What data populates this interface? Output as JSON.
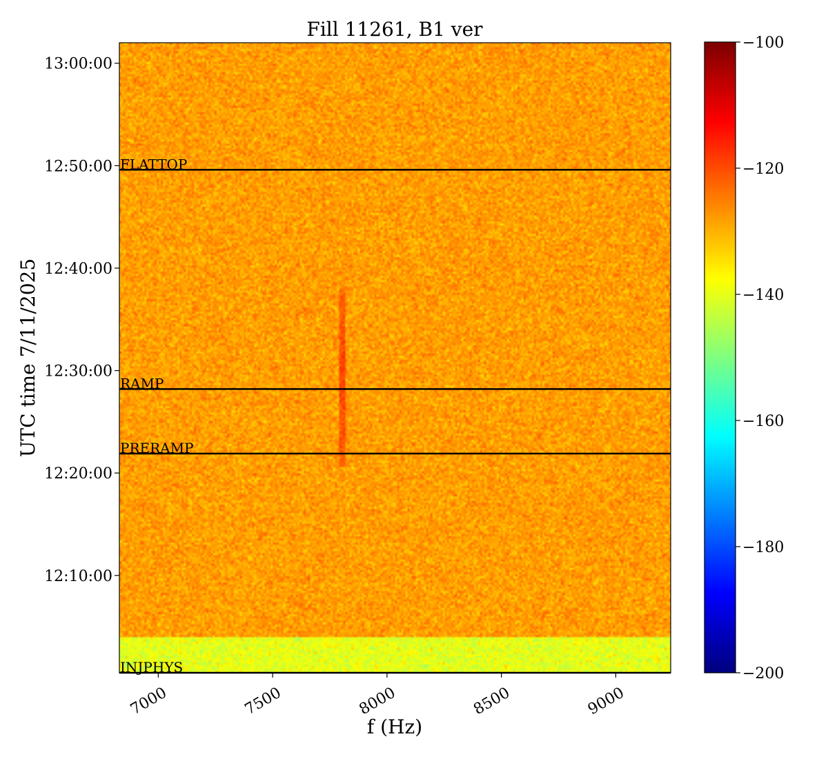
{
  "chart_data": {
    "type": "heatmap",
    "title": "Fill 11261, B1 ver",
    "xlabel": "f (Hz)",
    "ylabel": "UTC time 7/11/2025",
    "xlim": [
      6830,
      9240
    ],
    "ylim_minutes_since_midnight": [
      720.5,
      782.0
    ],
    "x_ticks": [
      {
        "value": 7000,
        "label": "7000"
      },
      {
        "value": 7500,
        "label": "7500"
      },
      {
        "value": 8000,
        "label": "8000"
      },
      {
        "value": 8500,
        "label": "8500"
      },
      {
        "value": 9000,
        "label": "9000"
      }
    ],
    "y_ticks": [
      {
        "value": 730,
        "label": "12:10:00"
      },
      {
        "value": 740,
        "label": "12:20:00"
      },
      {
        "value": 750,
        "label": "12:30:00"
      },
      {
        "value": 760,
        "label": "12:40:00"
      },
      {
        "value": 770,
        "label": "12:50:00"
      },
      {
        "value": 780,
        "label": "13:00:00"
      }
    ],
    "colormap": "jet",
    "colorbar": {
      "range": [
        -200,
        -100
      ],
      "ticks": [
        {
          "value": -100,
          "label": "−100"
        },
        {
          "value": -120,
          "label": "−120"
        },
        {
          "value": -140,
          "label": "−140"
        },
        {
          "value": -160,
          "label": "−160"
        },
        {
          "value": -180,
          "label": "−180"
        },
        {
          "value": -200,
          "label": "−200"
        }
      ]
    },
    "background_level": -128,
    "injection_band": {
      "time_range": [
        720.5,
        724.0
      ],
      "level": -140
    },
    "signal_line": {
      "frequency": 7800,
      "time_range": [
        740.5,
        758.0
      ],
      "peak_level": -119
    },
    "phases": [
      {
        "name": "INJPHYS",
        "time": 720.5
      },
      {
        "name": "PRERAMP",
        "time": 741.9
      },
      {
        "name": "RAMP",
        "time": 748.2
      },
      {
        "name": "FLATTOP",
        "time": 769.6
      }
    ],
    "grid": false
  }
}
